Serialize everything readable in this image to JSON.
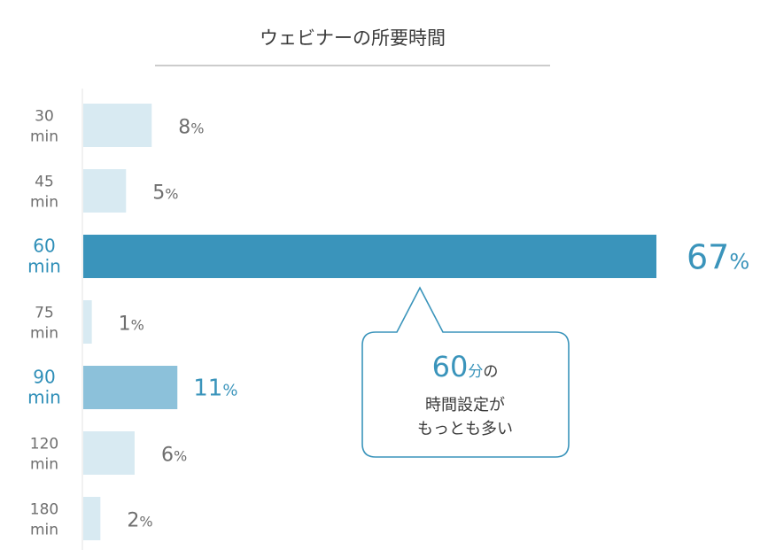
{
  "chart_data": {
    "type": "bar",
    "orientation": "horizontal",
    "title": "ウェビナーの所要時間",
    "categories": [
      {
        "value": "30",
        "unit": "min"
      },
      {
        "value": "45",
        "unit": "min"
      },
      {
        "value": "60",
        "unit": "min"
      },
      {
        "value": "75",
        "unit": "min"
      },
      {
        "value": "90",
        "unit": "min"
      },
      {
        "value": "120",
        "unit": "min"
      },
      {
        "value": "180",
        "unit": "min"
      }
    ],
    "values": [
      8,
      5,
      67,
      1,
      11,
      6,
      2
    ],
    "value_suffix": "%",
    "xlim": [
      0,
      67
    ],
    "grid": false,
    "highlight": {
      "primary": 2,
      "secondary": 4
    },
    "colors": {
      "default": "#d8eaf2",
      "primary": "#3a94bb",
      "secondary": "#8cc1da",
      "highlight_text": "#3a94bb",
      "label_text": "#6f6f6f"
    },
    "callout": {
      "big": "60",
      "unit": "分",
      "particle": "の",
      "line2": "時間設定が",
      "line3": "もっとも多い",
      "border_color": "#3a94bb"
    }
  }
}
